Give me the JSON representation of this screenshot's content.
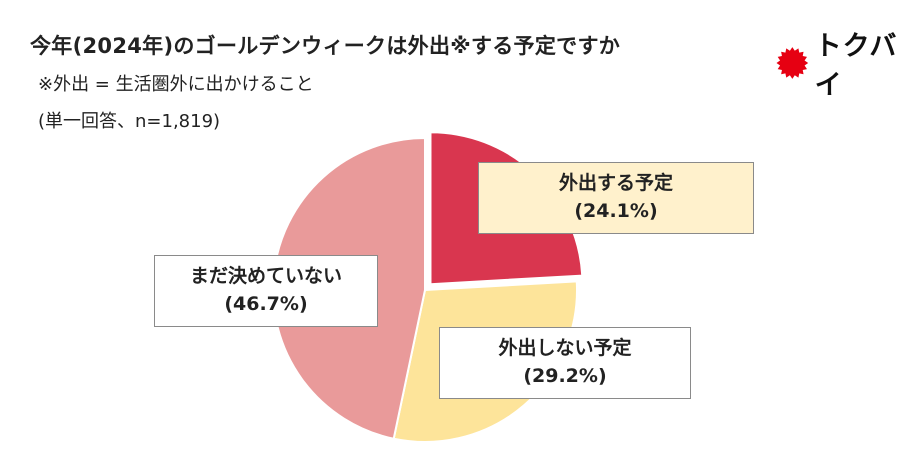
{
  "header": {
    "title": "今年(2024年)のゴールデンウィークは外出※する予定ですか",
    "subtitle": "※外出 = 生活圏外に出かけること",
    "note": "(単一回答、n=1,819)"
  },
  "logo": {
    "text": "トクバイ",
    "icon": "red-burst-icon",
    "color": "#e60012"
  },
  "chart_data": {
    "type": "pie",
    "title": "今年(2024年)のゴールデンウィークは外出※する予定ですか",
    "start_angle_deg": 0,
    "direction": "clockwise",
    "exploded_index": 0,
    "slices": [
      {
        "label": "外出する予定",
        "value": 24.1,
        "value_label": "(24.1%)",
        "color": "#d9364f"
      },
      {
        "label": "外出しない予定",
        "value": 29.2,
        "value_label": "(29.2%)",
        "color": "#fde49a"
      },
      {
        "label": "まだ決めていない",
        "value": 46.7,
        "value_label": "(46.7%)",
        "color": "#e99a9a"
      }
    ]
  }
}
